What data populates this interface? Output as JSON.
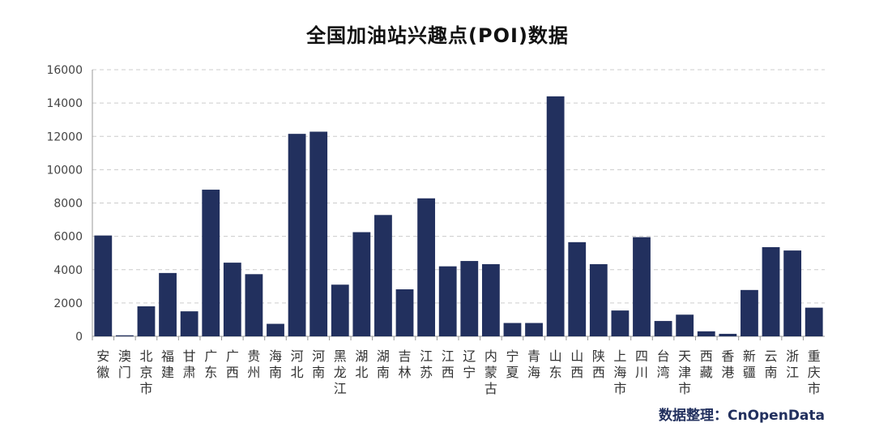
{
  "chart_data": {
    "type": "bar",
    "title": "全国加油站兴趣点(POI)数据",
    "xlabel": "",
    "ylabel": "",
    "ylim": [
      0,
      16000
    ],
    "yticks": [
      0,
      2000,
      4000,
      6000,
      8000,
      10000,
      12000,
      14000,
      16000
    ],
    "grid": true,
    "bar_color": "#22305e",
    "categories": [
      "安徽",
      "澳门",
      "北京市",
      "福建",
      "甘肃",
      "广东",
      "广西",
      "贵州",
      "海南",
      "河北",
      "河南",
      "黑龙江",
      "湖北",
      "湖南",
      "吉林",
      "江苏",
      "江西",
      "辽宁",
      "内蒙古",
      "宁夏",
      "青海",
      "山东",
      "山西",
      "陕西",
      "上海市",
      "四川",
      "台湾",
      "天津市",
      "西藏",
      "香港",
      "新疆",
      "云南",
      "浙江",
      "重庆市"
    ],
    "values": [
      6050,
      60,
      1800,
      3800,
      1500,
      8800,
      4420,
      3730,
      750,
      12150,
      12280,
      3100,
      6250,
      7280,
      2820,
      8280,
      4200,
      4520,
      4330,
      800,
      800,
      14400,
      5650,
      4330,
      1550,
      5950,
      920,
      1300,
      300,
      150,
      2780,
      5350,
      5150,
      1720
    ]
  },
  "credit": "数据整理：CnOpenData"
}
